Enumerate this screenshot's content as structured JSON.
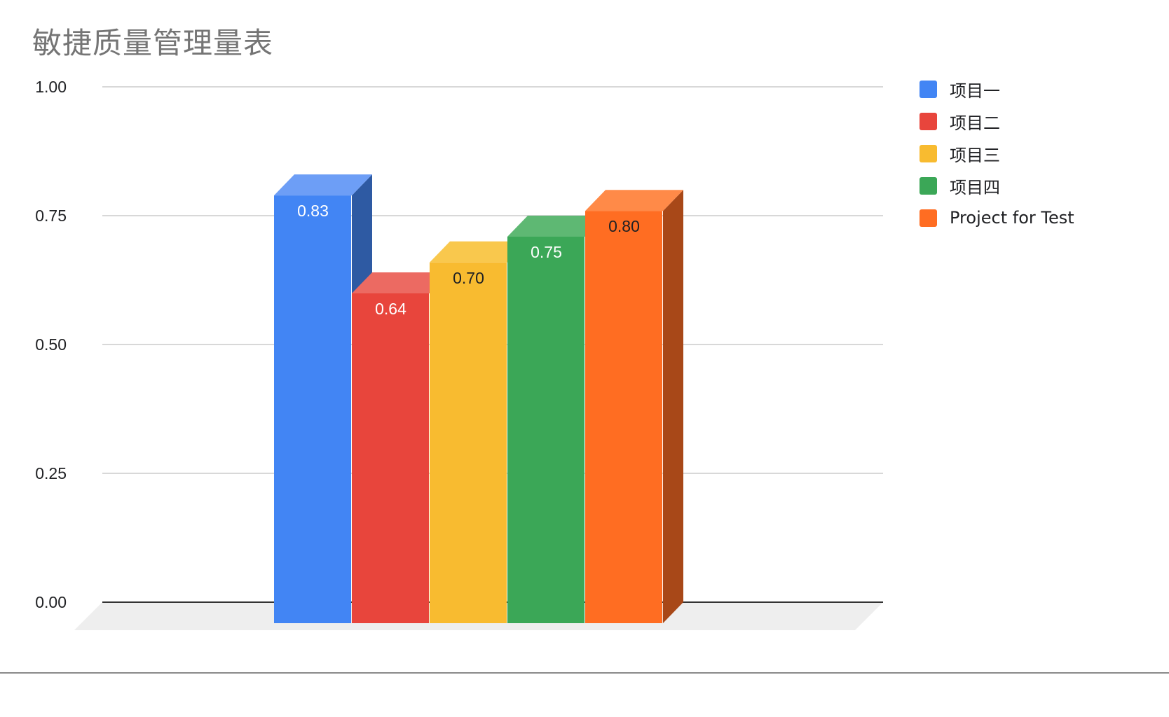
{
  "chart_data": {
    "type": "bar",
    "title": "敏捷质量管理量表",
    "xlabel": "",
    "ylabel": "",
    "ylim": [
      0,
      1
    ],
    "yticks": [
      "0.00",
      "0.25",
      "0.50",
      "0.75",
      "1.00"
    ],
    "grid": true,
    "legend_position": "right",
    "style": "3d",
    "series": [
      {
        "name": "项目一",
        "value": 0.83,
        "label": "0.83",
        "color": "#4285f4",
        "top_color": "#6d9ef6",
        "side_color": "#2e5aa3",
        "label_color": "#ffffff"
      },
      {
        "name": "项目二",
        "value": 0.64,
        "label": "0.64",
        "color": "#e8453c",
        "top_color": "#ec6a62",
        "side_color": "#a3302a",
        "label_color": "#ffffff"
      },
      {
        "name": "项目三",
        "value": 0.7,
        "label": "0.70",
        "color": "#f8bb30",
        "top_color": "#f9c84d",
        "side_color": "#b08421",
        "label_color": "#202124"
      },
      {
        "name": "项目四",
        "value": 0.75,
        "label": "0.75",
        "color": "#3ba757",
        "top_color": "#5eb873",
        "side_color": "#297539",
        "label_color": "#ffffff"
      },
      {
        "name": "Project for Test",
        "value": 0.8,
        "label": "0.80",
        "color": "#ff6d22",
        "top_color": "#ff8a48",
        "side_color": "#a84818",
        "label_color": "#202124"
      }
    ]
  }
}
